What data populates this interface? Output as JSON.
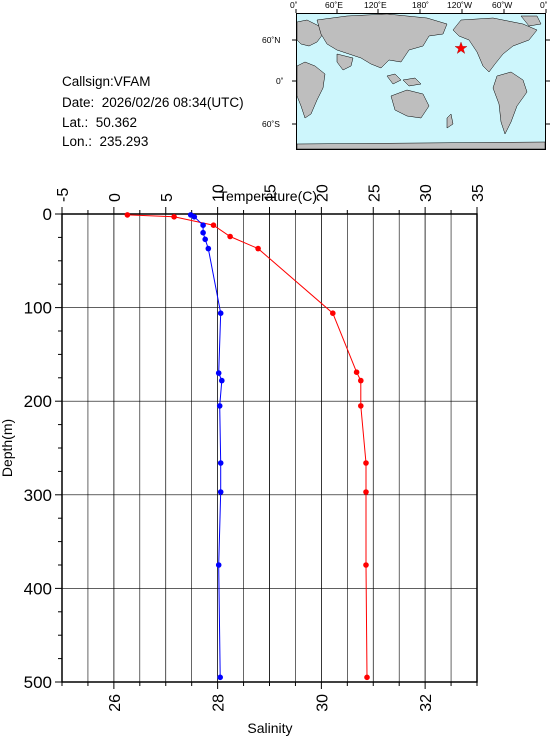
{
  "station": {
    "callsign": "Callsign:VFAM",
    "date": "Date:  2026/02/26 08:34(UTC)",
    "lat": "Lat.:  50.362",
    "lon": "Lon.:  235.293"
  },
  "map": {
    "lon_labels": [
      "0˚",
      "60˚E",
      "120˚E",
      "180˚",
      "120˚W",
      "60˚W",
      "0˚"
    ],
    "lat_labels": [
      "60˚N",
      "0˚",
      "60˚S"
    ],
    "ocean_color": "#cdf6fc",
    "land_color": "#bebebe",
    "marker_color": "#ff0000",
    "marker_icon": "star-icon"
  },
  "chart_data": {
    "type": "line",
    "title": "",
    "ylabel": "Depth(m)",
    "top_axis_label": "Temperature(C)",
    "bottom_axis_label": "Salinity",
    "ylim": [
      0,
      500
    ],
    "y_inverted": true,
    "y_ticks": [
      0,
      100,
      200,
      300,
      400,
      500
    ],
    "temperature_xlim": [
      -5,
      35
    ],
    "temperature_ticks": [
      -5,
      0,
      5,
      10,
      15,
      20,
      25,
      30,
      35
    ],
    "salinity_xlim": [
      25,
      33
    ],
    "salinity_ticks": [
      26,
      28,
      30,
      32
    ],
    "grid": true,
    "series": [
      {
        "name": "Temperature",
        "axis": "top",
        "color": "#ff0000",
        "points": [
          [
            1.3,
            1
          ],
          [
            5.8,
            3
          ],
          [
            9.6,
            12
          ],
          [
            11.2,
            24
          ],
          [
            13.9,
            37
          ],
          [
            21.1,
            106
          ],
          [
            23.4,
            169
          ],
          [
            23.8,
            178
          ],
          [
            23.8,
            205
          ],
          [
            24.3,
            266
          ],
          [
            24.3,
            297
          ],
          [
            24.3,
            375
          ],
          [
            24.4,
            495
          ]
        ]
      },
      {
        "name": "Salinity",
        "axis": "bottom",
        "color": "#0000ff",
        "points": [
          [
            27.48,
            1
          ],
          [
            27.55,
            3
          ],
          [
            27.72,
            12
          ],
          [
            27.72,
            20
          ],
          [
            27.76,
            27
          ],
          [
            27.82,
            37
          ],
          [
            28.06,
            106
          ],
          [
            28.02,
            170
          ],
          [
            28.08,
            178
          ],
          [
            28.04,
            205
          ],
          [
            28.06,
            266
          ],
          [
            28.06,
            297
          ],
          [
            28.02,
            375
          ],
          [
            28.05,
            495
          ]
        ]
      }
    ]
  }
}
